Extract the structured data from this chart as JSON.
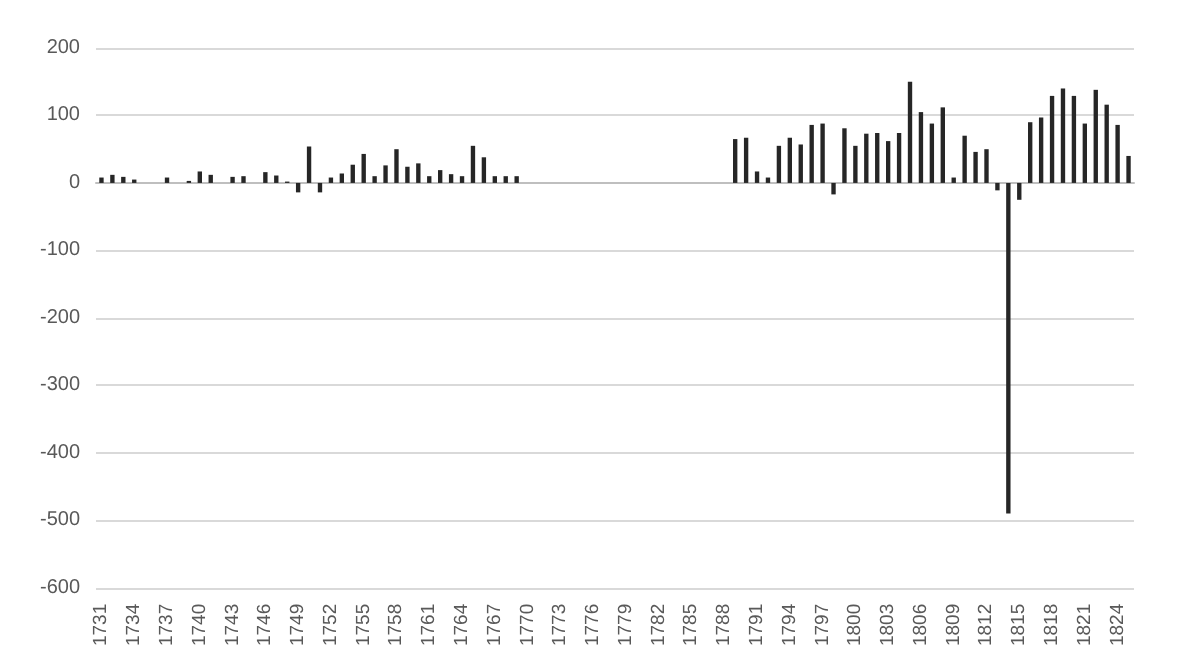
{
  "chart_data": {
    "type": "bar",
    "categories": [
      "1731",
      null,
      null,
      "1734",
      null,
      null,
      "1737",
      null,
      null,
      "1740",
      null,
      null,
      "1743",
      null,
      null,
      "1746",
      null,
      null,
      "1749",
      null,
      null,
      "1752",
      null,
      null,
      "1755",
      null,
      null,
      "1758",
      null,
      null,
      "1761",
      null,
      null,
      "1764",
      null,
      null,
      "1767",
      null,
      null,
      "1770",
      null,
      null,
      "1773",
      null,
      null,
      "1776",
      null,
      null,
      "1779",
      null,
      null,
      "1782",
      null,
      null,
      "1785",
      null,
      null,
      "1788",
      null,
      null,
      "1791",
      null,
      null,
      "1794",
      null,
      null,
      "1797",
      null,
      null,
      "1800",
      null,
      null,
      "1803",
      null,
      null,
      "1806",
      null,
      null,
      "1809",
      null,
      null,
      "1812",
      null,
      null,
      "1815",
      null,
      null,
      "1818",
      null,
      null,
      "1821",
      null,
      null,
      "1824",
      null
    ],
    "values": [
      8,
      12,
      9,
      5,
      null,
      null,
      8,
      null,
      3,
      17,
      12,
      null,
      9,
      10,
      null,
      16,
      11,
      2,
      -14,
      54,
      -14,
      8,
      14,
      27,
      43,
      10,
      26,
      50,
      24,
      29,
      10,
      19,
      13,
      10,
      55,
      38,
      10,
      10,
      10,
      null,
      null,
      null,
      null,
      null,
      null,
      null,
      null,
      null,
      null,
      null,
      null,
      null,
      null,
      null,
      null,
      null,
      null,
      null,
      65,
      67,
      17,
      8,
      55,
      67,
      57,
      86,
      88,
      -17,
      81,
      55,
      73,
      74,
      62,
      74,
      150,
      105,
      88,
      112,
      8,
      70,
      46,
      50,
      -11,
      -490,
      -25,
      90,
      97,
      129,
      140,
      129,
      88,
      138,
      116,
      86,
      40
    ],
    "color": "#262626",
    "ylim": [
      -600,
      200
    ],
    "yticks": [
      -600,
      -500,
      -400,
      -300,
      -200,
      -100,
      0,
      100,
      200
    ],
    "grid": "y"
  }
}
